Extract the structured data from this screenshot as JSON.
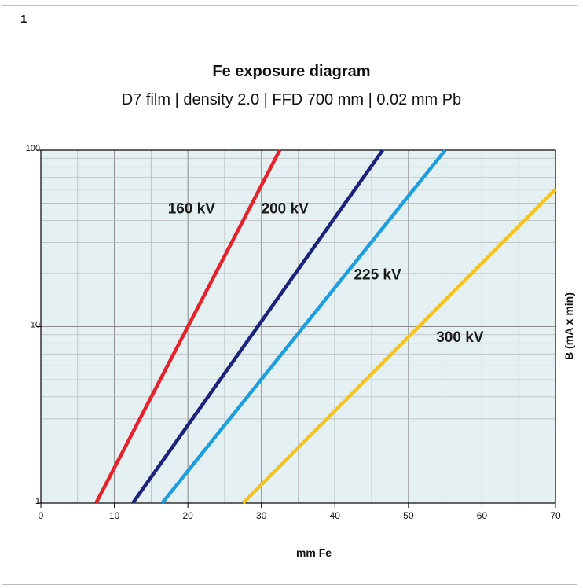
{
  "figure_number": "1",
  "chart_data": {
    "type": "line",
    "title": "Fe exposure diagram",
    "subtitle": "D7 film | density 2.0 | FFD 700 mm | 0.02 mm Pb",
    "xlabel": "mm Fe",
    "ylabel": "B (mA x min)",
    "xlim": [
      0,
      70
    ],
    "ylim": [
      1,
      100
    ],
    "yscale": "log",
    "x_ticks": [
      "0",
      "10",
      "20",
      "30",
      "40",
      "50",
      "60",
      "70"
    ],
    "x_tick_values": [
      0,
      10,
      20,
      30,
      40,
      50,
      60,
      70
    ],
    "y_ticks": [
      "1",
      "10",
      "100"
    ],
    "y_tick_values": [
      1,
      10,
      100
    ],
    "grid": true,
    "colors": {
      "plot_background": "#e4f0f1",
      "grid": "#8a8a8a",
      "grid_minor": "#b8b8b8",
      "axis": "#000000"
    },
    "series": [
      {
        "name": "160 kV",
        "color": "#e8202a",
        "x": [
          7.5,
          32.5
        ],
        "y": [
          1,
          100
        ]
      },
      {
        "name": "200 kV",
        "color": "#1c237c",
        "x": [
          12.5,
          46.5
        ],
        "y": [
          1,
          100
        ]
      },
      {
        "name": "225 kV",
        "color": "#1e9ee0",
        "x": [
          16.5,
          55.0
        ],
        "y": [
          1,
          100
        ]
      },
      {
        "name": "300 kV",
        "color": "#f7c21b",
        "x": [
          27.5,
          70.0
        ],
        "y": [
          1,
          60
        ]
      }
    ],
    "annotations": [
      {
        "text": "160 kV",
        "x": 20.5,
        "y": 46
      },
      {
        "text": "200 kV",
        "x": 33.2,
        "y": 46
      },
      {
        "text": "225 kV",
        "x": 45.8,
        "y": 19.5
      },
      {
        "text": "300 kV",
        "x": 57.0,
        "y": 8.6
      }
    ]
  }
}
